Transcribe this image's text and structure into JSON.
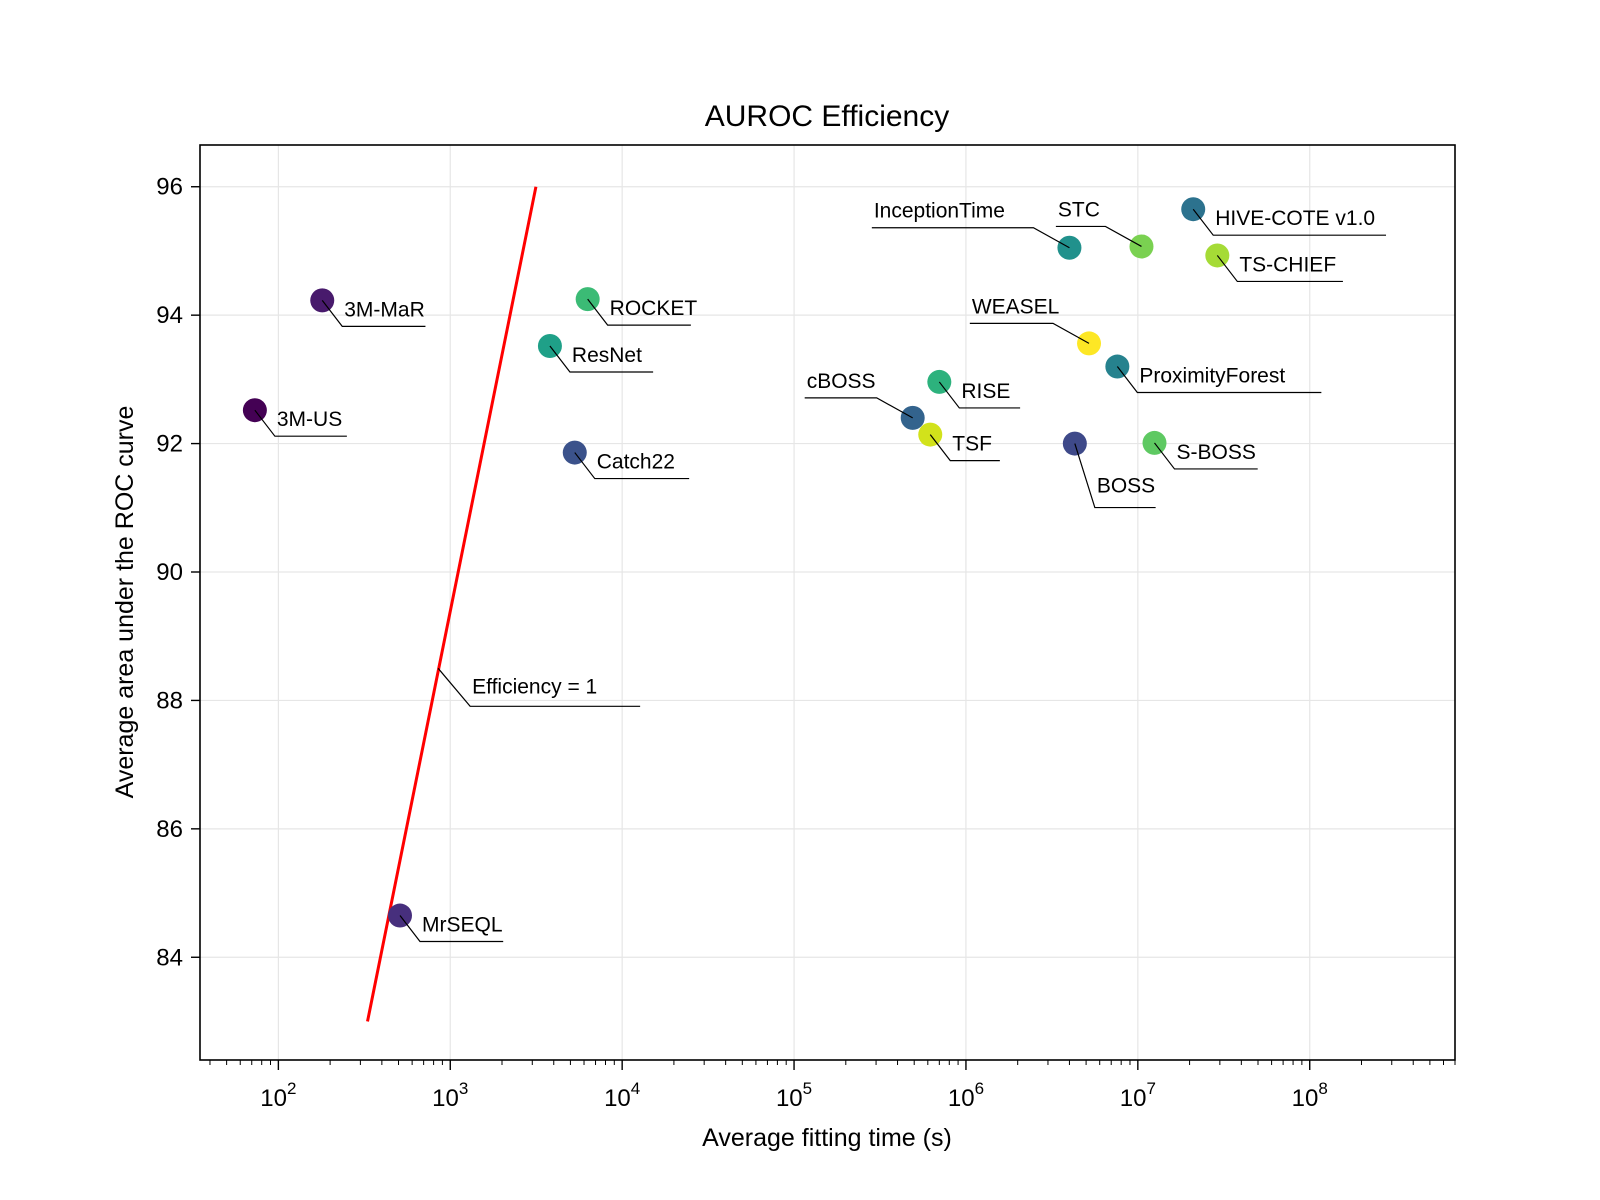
{
  "chart_data": {
    "type": "scatter",
    "title": "AUROC Efficiency",
    "xlabel": "Average fitting time (s)",
    "ylabel": "Average area under the ROC curve",
    "xscale": "log",
    "xlim": [
      35,
      700000000
    ],
    "ylim": [
      82.4,
      96.65
    ],
    "grid": true,
    "legend": "none",
    "xticks": [
      {
        "value": 100,
        "base": "10",
        "exp": "2"
      },
      {
        "value": 1000,
        "base": "10",
        "exp": "3"
      },
      {
        "value": 10000,
        "base": "10",
        "exp": "4"
      },
      {
        "value": 100000,
        "base": "10",
        "exp": "5"
      },
      {
        "value": 1000000,
        "base": "10",
        "exp": "6"
      },
      {
        "value": 10000000,
        "base": "10",
        "exp": "7"
      },
      {
        "value": 100000000,
        "base": "10",
        "exp": "8"
      }
    ],
    "yticks": [
      {
        "value": 84,
        "label": "84"
      },
      {
        "value": 86,
        "label": "86"
      },
      {
        "value": 88,
        "label": "88"
      },
      {
        "value": 90,
        "label": "90"
      },
      {
        "value": 92,
        "label": "92"
      },
      {
        "value": 94,
        "label": "94"
      },
      {
        "value": 96,
        "label": "96"
      }
    ],
    "efficiency_line": {
      "label": "Efficiency = 1",
      "color": "#ff0000",
      "points": [
        [
          330,
          83.0
        ],
        [
          3150,
          96.0
        ]
      ],
      "label_anchor": [
        850,
        88.5
      ],
      "label_side": "right"
    },
    "points": [
      {
        "name": "3M-US",
        "x": 73,
        "y": 92.52,
        "color": "#440154",
        "side": "right"
      },
      {
        "name": "3M-MaR",
        "x": 180,
        "y": 94.23,
        "color": "#481a6c",
        "side": "right"
      },
      {
        "name": "MrSEQL",
        "x": 510,
        "y": 84.65,
        "color": "#472f7d",
        "side": "right"
      },
      {
        "name": "ResNet",
        "x": 3800,
        "y": 93.52,
        "color": "#1fa088",
        "side": "right"
      },
      {
        "name": "ROCKET",
        "x": 6300,
        "y": 94.25,
        "color": "#3bbb75",
        "side": "right"
      },
      {
        "name": "Catch22",
        "x": 5300,
        "y": 91.86,
        "color": "#3b528b",
        "side": "right"
      },
      {
        "name": "cBOSS",
        "x": 490000,
        "y": 92.4,
        "color": "#33638d",
        "side": "left"
      },
      {
        "name": "TSF",
        "x": 620000,
        "y": 92.14,
        "color": "#d2e21b",
        "side": "right"
      },
      {
        "name": "RISE",
        "x": 700000,
        "y": 92.96,
        "color": "#2db27d",
        "side": "right"
      },
      {
        "name": "InceptionTime",
        "x": 4000000,
        "y": 95.05,
        "color": "#21918c",
        "side": "left"
      },
      {
        "name": "WEASEL",
        "x": 5200000,
        "y": 93.56,
        "color": "#fde725",
        "side": "left"
      },
      {
        "name": "BOSS",
        "x": 4300000,
        "y": 92.0,
        "color": "#3e4989",
        "side": "below"
      },
      {
        "name": "ProximityForest",
        "x": 7600000,
        "y": 93.2,
        "color": "#26828e",
        "side": "right"
      },
      {
        "name": "STC",
        "x": 10500000,
        "y": 95.07,
        "color": "#7ad151",
        "side": "left"
      },
      {
        "name": "S-BOSS",
        "x": 12500000,
        "y": 92.01,
        "color": "#5ec962",
        "side": "right"
      },
      {
        "name": "HIVE-COTE v1.0",
        "x": 21000000,
        "y": 95.65,
        "color": "#2c728e",
        "side": "right"
      },
      {
        "name": "TS-CHIEF",
        "x": 29000000,
        "y": 94.93,
        "color": "#a5db36",
        "side": "right"
      }
    ]
  }
}
